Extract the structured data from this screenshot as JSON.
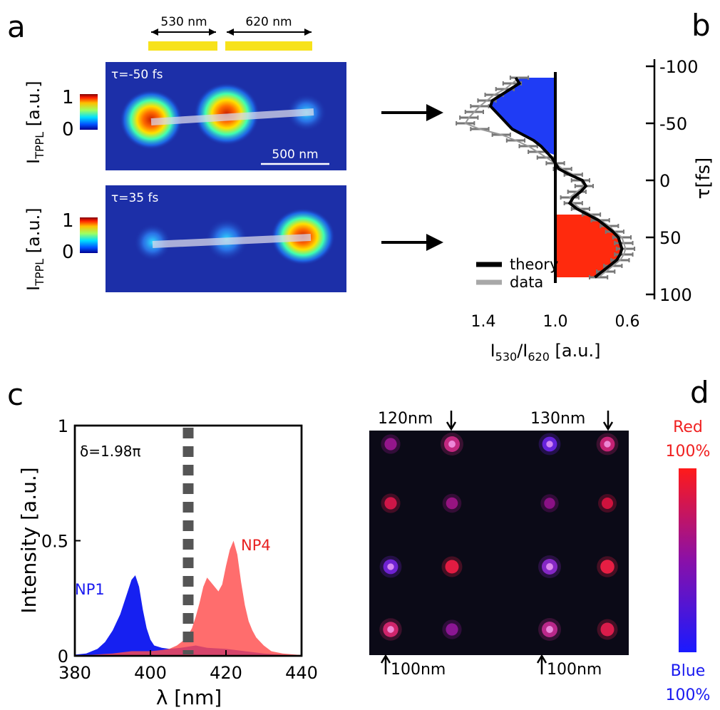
{
  "panel_labels": {
    "a": "a",
    "b": "b",
    "c": "c",
    "d": "d"
  },
  "panel_a": {
    "bracket_530": "530 nm",
    "bracket_620": "620 nm",
    "scale_bar": "500 nm",
    "colorbar_max": "1",
    "colorbar_min": "0",
    "ylabel_main": "I",
    "ylabel_sub": "TPPL",
    "ylabel_unit": " [a.u.]",
    "images": [
      {
        "label": "τ=-50 fs",
        "spots": [
          1.0,
          0.95,
          0.35
        ]
      },
      {
        "label": "τ=35 fs",
        "spots": [
          0.3,
          0.35,
          1.0
        ]
      }
    ],
    "colors": {
      "accent_yellow": "#f7e21b",
      "map_bg": "#1c2fa8"
    }
  },
  "chart_data": [
    {
      "panel": "b",
      "type": "line",
      "xlabel": {
        "main": "I",
        "sub1": "530",
        "sep": "/I",
        "sub2": "620",
        "unit": " [a.u.]"
      },
      "ylabel": "τ[fs]",
      "xlim": [
        1.65,
        0.5
      ],
      "ylim": [
        100,
        -100
      ],
      "xticks": [
        "1.4",
        "1.0",
        "0.6"
      ],
      "xtick_values": [
        1.4,
        1.0,
        0.6
      ],
      "yticks": [
        "-100",
        "-50",
        "0",
        "50",
        "100"
      ],
      "ytick_values": [
        -100,
        -50,
        0,
        50,
        100
      ],
      "legend": [
        "theory",
        "data"
      ],
      "legend_position": "bottom-left",
      "series": [
        {
          "name": "theory",
          "color": "#000000",
          "tau": [
            -90,
            -85,
            -80,
            -75,
            -70,
            -65,
            -60,
            -55,
            -50,
            -45,
            -40,
            -35,
            -30,
            -25,
            -20,
            -15,
            -10,
            -5,
            0,
            5,
            10,
            15,
            20,
            25,
            30,
            35,
            40,
            45,
            50,
            55,
            60,
            65,
            70,
            75,
            80,
            85
          ],
          "ratio": [
            1.22,
            1.2,
            1.25,
            1.3,
            1.35,
            1.36,
            1.33,
            1.3,
            1.27,
            1.24,
            1.18,
            1.12,
            1.08,
            1.05,
            1.02,
            1.0,
            0.98,
            0.92,
            0.85,
            0.83,
            0.86,
            0.9,
            0.92,
            0.88,
            0.82,
            0.76,
            0.72,
            0.68,
            0.65,
            0.64,
            0.63,
            0.64,
            0.66,
            0.7,
            0.74,
            0.78
          ]
        },
        {
          "name": "data",
          "color": "#999999",
          "tau": [
            -90,
            -85,
            -80,
            -75,
            -70,
            -65,
            -60,
            -55,
            -50,
            -45,
            -40,
            -35,
            -30,
            -25,
            -20,
            -15,
            -10,
            -5,
            0,
            5,
            10,
            15,
            20,
            25,
            30,
            35,
            40,
            45,
            50,
            55,
            60,
            65,
            70,
            75,
            80,
            85
          ],
          "ratio": [
            1.2,
            1.24,
            1.28,
            1.34,
            1.38,
            1.42,
            1.45,
            1.48,
            1.5,
            1.42,
            1.3,
            1.22,
            1.15,
            1.1,
            1.05,
            1.0,
            0.96,
            0.9,
            0.86,
            0.84,
            0.88,
            0.92,
            0.9,
            0.86,
            0.8,
            0.75,
            0.7,
            0.67,
            0.63,
            0.62,
            0.61,
            0.62,
            0.64,
            0.68,
            0.72,
            0.76
          ],
          "error": 0.05
        }
      ],
      "fills": [
        {
          "from_tau": -90,
          "to_tau": -22,
          "color": "#1f3cf5",
          "side": "above_1"
        },
        {
          "from_tau": 30,
          "to_tau": 85,
          "color": "#ff2a0d",
          "side": "below_1"
        }
      ]
    },
    {
      "panel": "c",
      "type": "area",
      "xlabel": "λ [nm]",
      "ylabel": "Intensity [a.u.]",
      "xlim": [
        380,
        440
      ],
      "ylim": [
        0,
        1
      ],
      "xticks": [
        "380",
        "400",
        "420",
        "440"
      ],
      "xtick_values": [
        380,
        400,
        420,
        440
      ],
      "yticks": [
        "0",
        "0.5",
        "1"
      ],
      "ytick_values": [
        0,
        0.5,
        1
      ],
      "annotation": "δ=1.98π",
      "dashed_line_x": 410,
      "series": [
        {
          "name": "NP1",
          "color": "#0a14f0",
          "x": [
            380,
            383,
            386,
            388,
            390,
            392,
            393,
            394,
            395,
            396,
            397,
            398,
            399,
            400,
            401,
            403,
            405,
            408,
            410,
            412,
            415,
            420,
            425,
            430,
            435,
            440
          ],
          "y": [
            0.005,
            0.01,
            0.03,
            0.06,
            0.11,
            0.18,
            0.23,
            0.28,
            0.33,
            0.35,
            0.3,
            0.2,
            0.12,
            0.07,
            0.045,
            0.035,
            0.03,
            0.035,
            0.04,
            0.045,
            0.035,
            0.03,
            0.02,
            0.01,
            0.005,
            0.002
          ]
        },
        {
          "name": "NP4",
          "color": "#ff4d4d",
          "x": [
            380,
            385,
            390,
            395,
            400,
            403,
            405,
            407,
            409,
            410,
            411,
            412,
            413,
            414,
            415,
            416,
            417,
            418,
            419,
            420,
            421,
            422,
            423,
            424,
            425,
            426,
            427,
            428,
            430,
            432,
            435,
            440
          ],
          "y": [
            0.002,
            0.005,
            0.01,
            0.02,
            0.02,
            0.025,
            0.03,
            0.045,
            0.07,
            0.09,
            0.12,
            0.17,
            0.23,
            0.3,
            0.34,
            0.32,
            0.3,
            0.28,
            0.31,
            0.39,
            0.46,
            0.5,
            0.44,
            0.32,
            0.22,
            0.15,
            0.11,
            0.08,
            0.045,
            0.02,
            0.01,
            0.003
          ]
        }
      ]
    }
  ],
  "panel_d": {
    "top_labels": [
      "120nm",
      "130nm"
    ],
    "bottom_labels": [
      "100nm",
      "100nm"
    ],
    "legend_top_word": "Red",
    "legend_top_pct": "100%",
    "legend_bottom_word": "Blue",
    "legend_bottom_pct": "100%",
    "spots": [
      {
        "row": 0,
        "col": 0,
        "red": 0.5,
        "intensity": 0.6
      },
      {
        "row": 0,
        "col": 1,
        "red": 0.65,
        "intensity": 1.0
      },
      {
        "row": 0,
        "col": 2,
        "red": 0.15,
        "intensity": 0.9
      },
      {
        "row": 0,
        "col": 3,
        "red": 0.7,
        "intensity": 0.9
      },
      {
        "row": 1,
        "col": 0,
        "red": 0.9,
        "intensity": 0.6
      },
      {
        "row": 1,
        "col": 1,
        "red": 0.55,
        "intensity": 0.55
      },
      {
        "row": 1,
        "col": 2,
        "red": 0.5,
        "intensity": 0.45
      },
      {
        "row": 1,
        "col": 3,
        "red": 0.95,
        "intensity": 0.5
      },
      {
        "row": 2,
        "col": 0,
        "red": 0.2,
        "intensity": 0.9
      },
      {
        "row": 2,
        "col": 1,
        "red": 0.95,
        "intensity": 0.75
      },
      {
        "row": 2,
        "col": 2,
        "red": 0.3,
        "intensity": 1.0
      },
      {
        "row": 2,
        "col": 3,
        "red": 0.95,
        "intensity": 0.8
      },
      {
        "row": 3,
        "col": 0,
        "red": 0.75,
        "intensity": 0.95
      },
      {
        "row": 3,
        "col": 1,
        "red": 0.45,
        "intensity": 0.6
      },
      {
        "row": 3,
        "col": 2,
        "red": 0.6,
        "intensity": 1.0
      },
      {
        "row": 3,
        "col": 3,
        "red": 0.9,
        "intensity": 0.75
      }
    ]
  }
}
